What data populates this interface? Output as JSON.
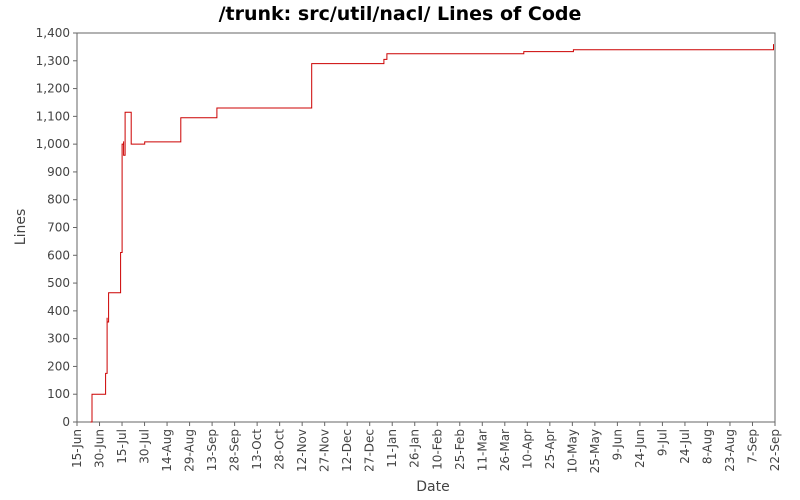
{
  "chart_data": {
    "type": "line",
    "title": "/trunk: src/util/nacl/ Lines of Code",
    "xlabel": "Date",
    "ylabel": "Lines",
    "x_tick_labels": [
      "15-Jun",
      "30-Jun",
      "15-Jul",
      "30-Jul",
      "14-Aug",
      "29-Aug",
      "13-Sep",
      "28-Sep",
      "13-Oct",
      "28-Oct",
      "12-Nov",
      "27-Nov",
      "12-Dec",
      "27-Dec",
      "11-Jan",
      "26-Jan",
      "10-Feb",
      "25-Feb",
      "11-Mar",
      "26-Mar",
      "10-Apr",
      "25-Apr",
      "10-May",
      "25-May",
      "9-Jun",
      "24-Jun",
      "9-Jul",
      "24-Jul",
      "8-Aug",
      "23-Aug",
      "7-Sep",
      "22-Sep"
    ],
    "y_tick_labels": [
      "0",
      "100",
      "200",
      "300",
      "400",
      "500",
      "600",
      "700",
      "800",
      "900",
      "1,000",
      "1,100",
      "1,200",
      "1,300",
      "1,400"
    ],
    "ylim": [
      0,
      1400
    ],
    "grid": false,
    "legend": "none",
    "line_color": "#cc0000",
    "series": [
      {
        "step": true,
        "points": [
          [
            "2009-06-24",
            0
          ],
          [
            "2009-06-25",
            100
          ],
          [
            "2009-07-04",
            100
          ],
          [
            "2009-07-04",
            175
          ],
          [
            "2009-07-05",
            375
          ],
          [
            "2009-07-05",
            360
          ],
          [
            "2009-07-06",
            370
          ],
          [
            "2009-07-06",
            465
          ],
          [
            "2009-07-14",
            465
          ],
          [
            "2009-07-14",
            610
          ],
          [
            "2009-07-15",
            790
          ],
          [
            "2009-07-15",
            1000
          ],
          [
            "2009-07-16",
            1010
          ],
          [
            "2009-07-16",
            960
          ],
          [
            "2009-07-17",
            1040
          ],
          [
            "2009-07-17",
            1115
          ],
          [
            "2009-07-21",
            1115
          ],
          [
            "2009-07-21",
            1000
          ],
          [
            "2009-07-30",
            1000
          ],
          [
            "2009-07-30",
            1008
          ],
          [
            "2009-08-23",
            1008
          ],
          [
            "2009-08-23",
            1095
          ],
          [
            "2009-09-16",
            1095
          ],
          [
            "2009-09-16",
            1130
          ],
          [
            "2009-11-17",
            1130
          ],
          [
            "2009-11-18",
            1135
          ],
          [
            "2009-11-18",
            1290
          ],
          [
            "2010-01-05",
            1290
          ],
          [
            "2010-01-05",
            1305
          ],
          [
            "2010-01-07",
            1310
          ],
          [
            "2010-01-07",
            1325
          ],
          [
            "2010-04-07",
            1325
          ],
          [
            "2010-04-08",
            1333
          ],
          [
            "2010-05-11",
            1333
          ],
          [
            "2010-05-11",
            1340
          ],
          [
            "2010-09-21",
            1340
          ],
          [
            "2010-09-21",
            1360
          ]
        ]
      }
    ]
  }
}
